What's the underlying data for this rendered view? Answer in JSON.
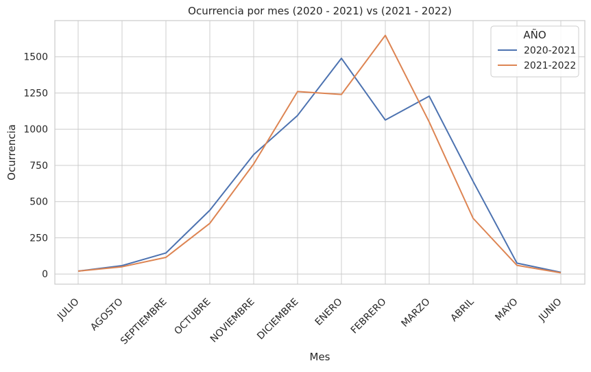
{
  "chart_data": {
    "type": "line",
    "title": "Ocurrencia por mes (2020 - 2021) vs (2021 - 2022)",
    "xlabel": "Mes",
    "ylabel": "Ocurrencia",
    "categories": [
      "JULIO",
      "AGOSTO",
      "SEPTIEMBRE",
      "OCTUBRE",
      "NOVIEMBRE",
      "DICIEMBRE",
      "ENERO",
      "FEBRERO",
      "MARZO",
      "ABRIL",
      "MAYO",
      "JUNIO"
    ],
    "ylim": [
      -70,
      1750
    ],
    "yticks": [
      0,
      250,
      500,
      750,
      1000,
      1250,
      1500
    ],
    "grid": true,
    "legend": {
      "title": "AÑO",
      "position": "top-right"
    },
    "series": [
      {
        "name": "2020-2021",
        "color": "#4c72b0",
        "values": [
          20,
          58,
          145,
          440,
          825,
          1095,
          1490,
          1063,
          1228,
          640,
          75,
          12
        ]
      },
      {
        "name": "2021-2022",
        "color": "#dd8452",
        "values": [
          20,
          50,
          115,
          350,
          760,
          1260,
          1240,
          1648,
          1050,
          385,
          60,
          8
        ]
      }
    ]
  }
}
